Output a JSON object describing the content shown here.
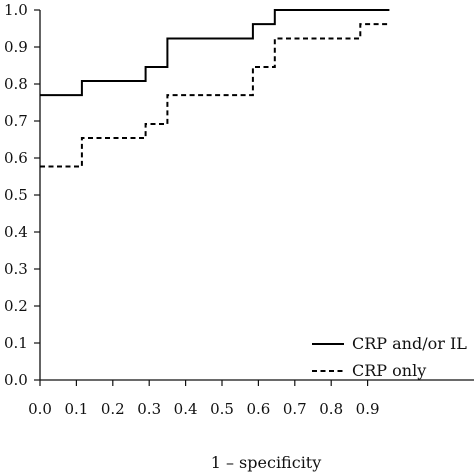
{
  "chart_data": {
    "type": "line",
    "title": "",
    "xlabel": "1 – specificity",
    "ylabel": "",
    "xlim": [
      0.0,
      0.96
    ],
    "ylim": [
      0.0,
      1.0
    ],
    "grid": false,
    "legend_position": "bottom-right",
    "x_ticks": [
      "0.0",
      "0.1",
      "0.2",
      "0.3",
      "0.4",
      "0.5",
      "0.6",
      "0.7",
      "0.8",
      "0.9"
    ],
    "y_ticks": [
      "0.0",
      "0.1",
      "0.2",
      "0.3",
      "0.4",
      "0.5",
      "0.6",
      "0.7",
      "0.8",
      "0.9",
      "1.0"
    ],
    "series": [
      {
        "name": "CRP and/or IL",
        "style": "solid",
        "color": "#000000",
        "x": [
          0.0,
          0.115,
          0.115,
          0.29,
          0.29,
          0.35,
          0.35,
          0.585,
          0.585,
          0.645,
          0.645,
          0.96
        ],
        "y": [
          0.77,
          0.77,
          0.808,
          0.808,
          0.846,
          0.846,
          0.923,
          0.923,
          0.962,
          0.962,
          1.0,
          1.0
        ]
      },
      {
        "name": "CRP only",
        "style": "dashed",
        "color": "#000000",
        "x": [
          0.0,
          0.115,
          0.115,
          0.29,
          0.29,
          0.35,
          0.35,
          0.585,
          0.585,
          0.645,
          0.645,
          0.88,
          0.88,
          0.96
        ],
        "y": [
          0.577,
          0.577,
          0.654,
          0.654,
          0.692,
          0.692,
          0.77,
          0.77,
          0.846,
          0.846,
          0.923,
          0.923,
          0.962,
          0.962
        ]
      }
    ]
  }
}
